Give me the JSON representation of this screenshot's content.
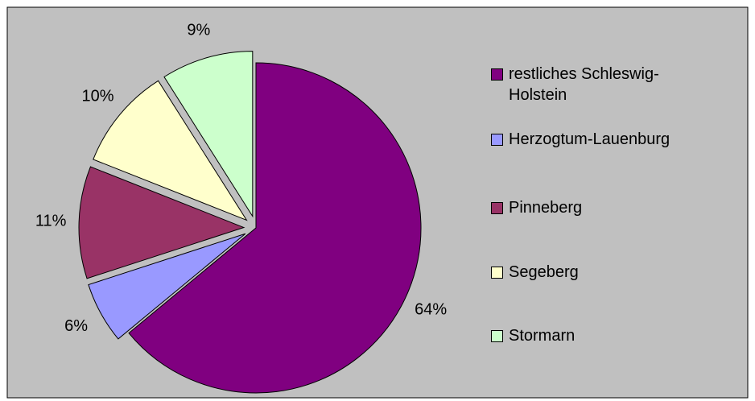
{
  "chart_data": {
    "type": "pie",
    "categories": [
      "restliches Schleswig-Holstein",
      "Herzogtum-Lauenburg",
      "Pinneberg",
      "Segeberg",
      "Stormarn"
    ],
    "values": [
      64,
      6,
      11,
      10,
      9
    ],
    "value_labels": [
      "64%",
      "6%",
      "11%",
      "10%",
      "9%"
    ],
    "colors": [
      "#800080",
      "#9999ff",
      "#993366",
      "#ffffcc",
      "#ccffcc"
    ],
    "legend": "right"
  }
}
